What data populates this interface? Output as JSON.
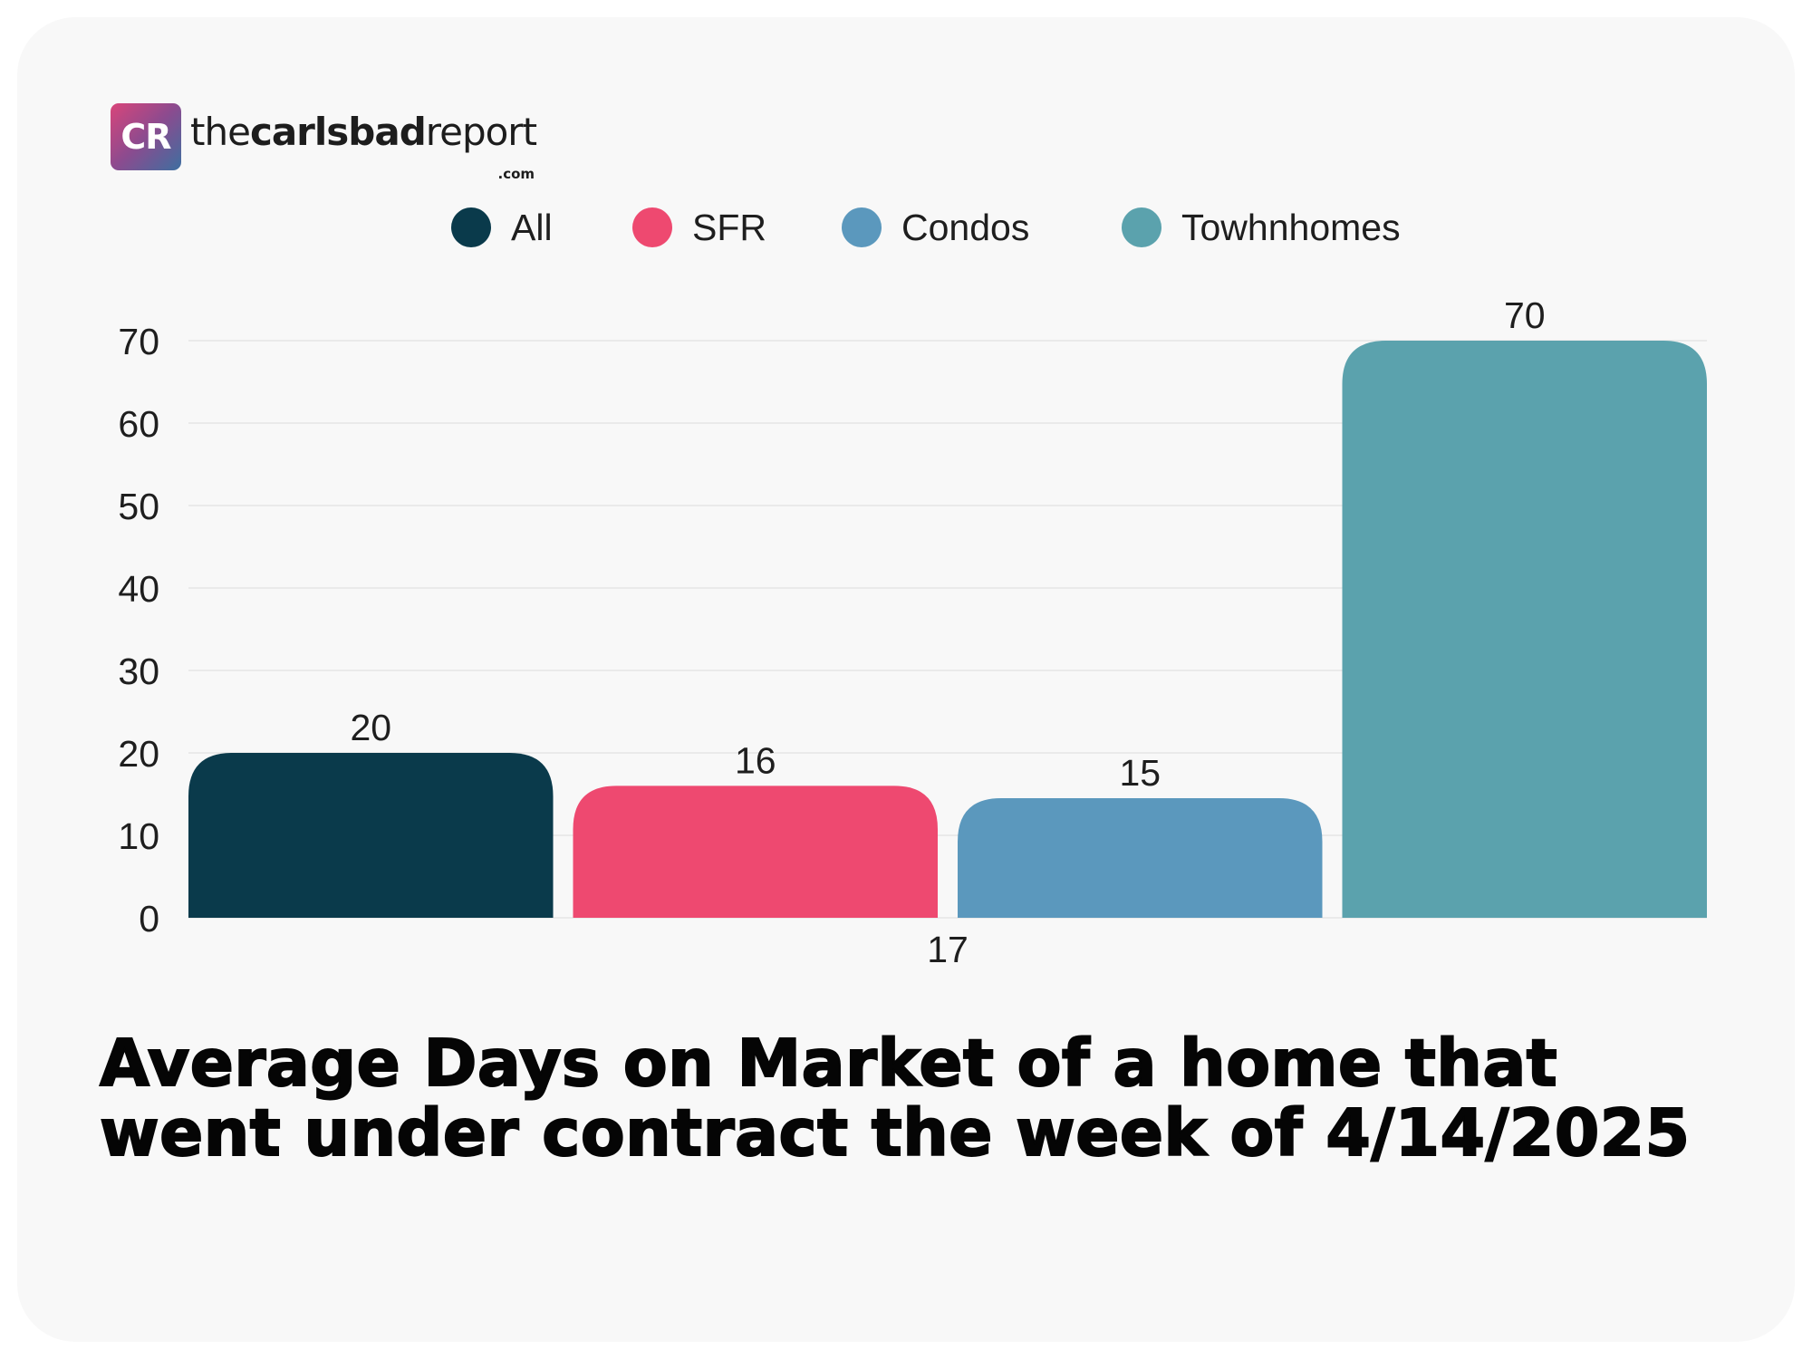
{
  "brand": {
    "mark": "CR",
    "name_light_1": "the",
    "name_bold": "carlsbad",
    "name_light_2": "report",
    "suffix": ".com"
  },
  "colors": {
    "background": "#f8f8f8",
    "gridline": "#e6e6e6",
    "text": "#1e1e1e"
  },
  "chart_data": {
    "type": "bar",
    "title": "Average Days on Market of a home that went under contract the week of 4/14/2025",
    "categories": [
      "17"
    ],
    "ylim": [
      0,
      70
    ],
    "yticks": [
      0,
      10,
      20,
      30,
      40,
      50,
      60,
      70
    ],
    "grid": true,
    "legend_position": "top-center",
    "series": [
      {
        "name": "All",
        "values": [
          20
        ],
        "color": "#0a3a4b",
        "label": "20"
      },
      {
        "name": "SFR",
        "values": [
          16
        ],
        "color": "#ee4970",
        "label": "16"
      },
      {
        "name": "Condos",
        "values": [
          14.5
        ],
        "color": "#5b98bd",
        "label": "15"
      },
      {
        "name": "Towhnhomes",
        "values": [
          70
        ],
        "color": "#5ba2ad",
        "label": "70"
      }
    ]
  }
}
